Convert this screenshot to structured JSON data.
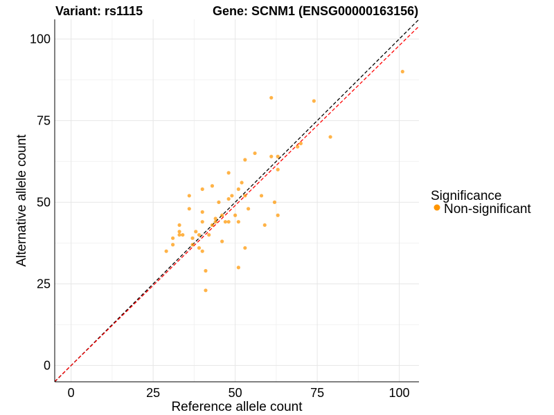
{
  "chart_data": {
    "type": "scatter",
    "title_left": "Variant: rs1115",
    "title_right": "Gene: SCNM1 (ENSG00000163156)",
    "xlabel": "Reference allele count",
    "ylabel": "Alternative allele count",
    "xlim": [
      -5,
      106
    ],
    "ylim": [
      -5,
      106
    ],
    "x_ticks": [
      0,
      25,
      50,
      75,
      100
    ],
    "y_ticks": [
      0,
      25,
      50,
      75,
      100
    ],
    "x_tick_labels": [
      "0",
      "25",
      "50",
      "75",
      "100"
    ],
    "y_tick_labels": [
      "0",
      "25",
      "50",
      "75",
      "100"
    ],
    "grid": true,
    "legend": {
      "title": "Significance",
      "position": "right",
      "items": [
        {
          "label": "Non-significant",
          "color": "#ff9500"
        }
      ]
    },
    "reference_lines": [
      {
        "slope": 1,
        "intercept": 0,
        "color": "#000000",
        "style": "dashed"
      },
      {
        "slope": 0.98,
        "intercept": 0,
        "color": "#ff0000",
        "style": "dashed"
      }
    ],
    "series": [
      {
        "name": "Non-significant",
        "color": "#ff9500",
        "points": [
          [
            101,
            90
          ],
          [
            74,
            81
          ],
          [
            61,
            82
          ],
          [
            79,
            70
          ],
          [
            70,
            68
          ],
          [
            69,
            67
          ],
          [
            63,
            64
          ],
          [
            61,
            64
          ],
          [
            63,
            60
          ],
          [
            56,
            65
          ],
          [
            53,
            63
          ],
          [
            48,
            59
          ],
          [
            52,
            56
          ],
          [
            51,
            54
          ],
          [
            53,
            52
          ],
          [
            54,
            48
          ],
          [
            58,
            52
          ],
          [
            62,
            50
          ],
          [
            63,
            46
          ],
          [
            59,
            43
          ],
          [
            48,
            51
          ],
          [
            45,
            50
          ],
          [
            49,
            52
          ],
          [
            43,
            55
          ],
          [
            40,
            54
          ],
          [
            36,
            52
          ],
          [
            36,
            48
          ],
          [
            40,
            47
          ],
          [
            44,
            45
          ],
          [
            46,
            46
          ],
          [
            47,
            44
          ],
          [
            48,
            44
          ],
          [
            50,
            46
          ],
          [
            51,
            44
          ],
          [
            43,
            43
          ],
          [
            44,
            44
          ],
          [
            42,
            40
          ],
          [
            46,
            38
          ],
          [
            40,
            44
          ],
          [
            38,
            41
          ],
          [
            39,
            40
          ],
          [
            33,
            43
          ],
          [
            33,
            41
          ],
          [
            34,
            40
          ],
          [
            33,
            40
          ],
          [
            31,
            39
          ],
          [
            31,
            37
          ],
          [
            29,
            35
          ],
          [
            37,
            39
          ],
          [
            39,
            36
          ],
          [
            40,
            35
          ],
          [
            37,
            37
          ],
          [
            53,
            36
          ],
          [
            51,
            30
          ],
          [
            41,
            29
          ],
          [
            41,
            23
          ]
        ]
      }
    ]
  }
}
